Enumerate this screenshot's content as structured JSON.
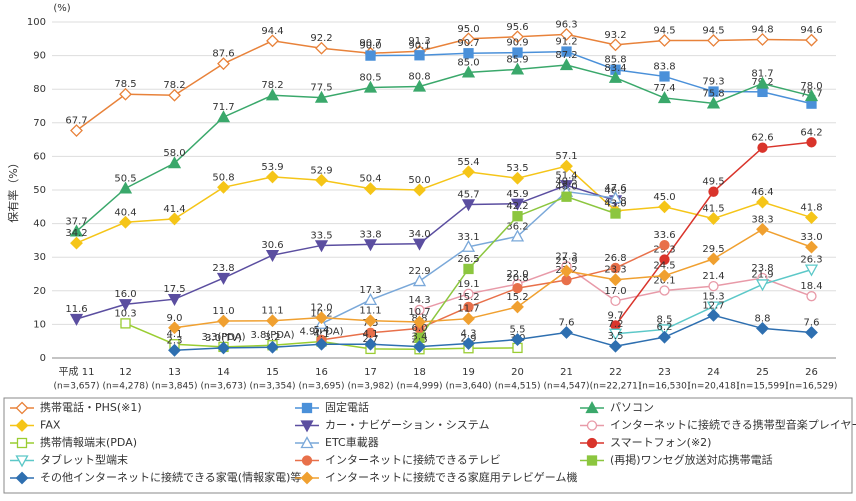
{
  "chart_data": {
    "type": "line",
    "y_unit": "(%)",
    "y_title": "保有率（%）",
    "categories": [
      "平成 11",
      "12",
      "13",
      "14",
      "15",
      "16",
      "17",
      "18",
      "19",
      "20",
      "21",
      "22",
      "23",
      "24",
      "25",
      "26"
    ],
    "sample_sizes": [
      "(n=3,657)",
      "(n=4,278)",
      "(n=3,845)",
      "(n=3,673)",
      "(n=3,354)",
      "(n=3,695)",
      "(n=3,982)",
      "(n=4,999)",
      "(n=3,640)",
      "(n=4,515)",
      "(n=4,547)",
      "(n=22,271)",
      "(n=16,530)",
      "(n=20,418)",
      "(n=15,599)",
      "(n=16,529)"
    ],
    "ylim": [
      0,
      100
    ],
    "yticks": [
      0,
      10,
      20,
      30,
      40,
      50,
      60,
      70,
      80,
      90,
      100
    ],
    "grid": true,
    "series": [
      {
        "name": "携帯電話・PHS(※1)",
        "color": "#e8823a",
        "marker": "diamond",
        "filled": false,
        "values": [
          67.7,
          78.5,
          78.2,
          87.6,
          94.4,
          92.2,
          90.7,
          91.3,
          95.0,
          95.6,
          96.3,
          93.2,
          94.5,
          94.5,
          94.8,
          94.6
        ]
      },
      {
        "name": "固定電話",
        "color": "#4a90d9",
        "marker": "square",
        "filled": true,
        "values": [
          null,
          null,
          null,
          null,
          null,
          null,
          90.0,
          90.1,
          90.7,
          90.9,
          91.2,
          85.8,
          83.8,
          79.3,
          79.2,
          75.7
        ]
      },
      {
        "name": "パソコン",
        "color": "#3aa86b",
        "marker": "triangle",
        "filled": true,
        "values": [
          37.7,
          50.5,
          58.0,
          71.7,
          78.2,
          77.5,
          80.5,
          80.8,
          85.0,
          85.9,
          87.2,
          83.4,
          77.4,
          75.8,
          81.7,
          78.0
        ]
      },
      {
        "name": "FAX",
        "color": "#f5c518",
        "marker": "diamond",
        "filled": true,
        "values": [
          34.2,
          40.4,
          41.4,
          50.8,
          53.9,
          52.9,
          50.4,
          50.0,
          55.4,
          53.5,
          57.1,
          43.8,
          45.0,
          41.5,
          46.4,
          41.8
        ]
      },
      {
        "name": "カー・ナビゲーション・システム",
        "color": "#5b4ea0",
        "marker": "triangle-down",
        "filled": true,
        "values": [
          11.6,
          16.0,
          17.5,
          23.8,
          30.6,
          33.5,
          33.8,
          34.0,
          45.7,
          45.9,
          51.4,
          46.9,
          null,
          null,
          null,
          null
        ]
      },
      {
        "name": "インターネットに接続できる携帯型音楽プレイヤー",
        "color": "#e89aa8",
        "marker": "circle",
        "filled": false,
        "values": [
          null,
          null,
          null,
          null,
          null,
          null,
          null,
          14.3,
          19.1,
          22.0,
          27.3,
          17.0,
          20.1,
          21.4,
          23.8,
          18.4
        ]
      },
      {
        "name": "携帯情報端末(PDA)",
        "color": "#9acd32",
        "marker": "square",
        "filled": false,
        "values": [
          null,
          10.3,
          4.1,
          3.3,
          3.8,
          4.9,
          2.7,
          2.6,
          2.9,
          3.0,
          null,
          null,
          null,
          null,
          null,
          null
        ],
        "value_labels": [
          null,
          "10.3",
          "4.1",
          "3.3(PDA)",
          "3.8(PDA)",
          "4.9(PDA)",
          "2.7",
          "2.6",
          "2.9",
          "3.0",
          null,
          null,
          null,
          null,
          null,
          null
        ]
      },
      {
        "name": "ETC車載器",
        "color": "#7aa8d9",
        "marker": "triangle",
        "filled": false,
        "values": [
          null,
          null,
          null,
          null,
          null,
          10.2,
          17.3,
          22.9,
          33.1,
          36.2,
          49.5,
          47.6,
          null,
          null,
          null,
          null
        ]
      },
      {
        "name": "スマートフォン(※2)",
        "color": "#d9342b",
        "marker": "circle",
        "filled": true,
        "values": [
          null,
          null,
          null,
          null,
          null,
          null,
          null,
          null,
          null,
          null,
          null,
          9.7,
          29.3,
          49.5,
          62.6,
          64.2
        ]
      },
      {
        "name": "タブレット型端末",
        "color": "#5cc8c8",
        "marker": "triangle-down",
        "filled": false,
        "values": [
          null,
          null,
          null,
          null,
          null,
          null,
          null,
          null,
          null,
          null,
          null,
          7.2,
          8.5,
          15.3,
          21.9,
          26.3
        ]
      },
      {
        "name": "インターネットに接続できるテレビ",
        "color": "#e8704a",
        "marker": "circle",
        "filled": true,
        "values": [
          null,
          null,
          null,
          null,
          null,
          5.4,
          7.5,
          8.8,
          15.2,
          20.8,
          23.2,
          26.8,
          33.6,
          null,
          null,
          null
        ]
      },
      {
        "name": "(再掲)ワンセグ放送対応携帯電話",
        "color": "#8cc63f",
        "marker": "square",
        "filled": true,
        "values": [
          null,
          null,
          null,
          null,
          null,
          null,
          null,
          6.0,
          26.5,
          42.2,
          48.0,
          43.0,
          null,
          null,
          null,
          null
        ]
      },
      {
        "name": "その他インターネットに接続できる家電(情報家電)等",
        "color": "#2e6fb0",
        "marker": "diamond",
        "filled": true,
        "values": [
          null,
          null,
          2.3,
          3.0,
          3.2,
          4.1,
          4.1,
          3.4,
          4.3,
          5.5,
          7.6,
          3.5,
          6.2,
          12.7,
          8.8,
          7.6
        ],
        "value_labels": [
          null,
          null,
          "2.3",
          "3.0(TV)",
          "3.2",
          "4.1",
          "4.1",
          "3.4",
          "4.3",
          "5.5",
          "7.6",
          "3.5",
          "6.2",
          "12.7",
          "8.8",
          "7.6"
        ]
      },
      {
        "name": "インターネットに接続できる家庭用テレビゲーム機",
        "color": "#f0a030",
        "marker": "diamond",
        "filled": true,
        "values": [
          null,
          null,
          9.0,
          11.0,
          11.1,
          12.0,
          11.1,
          10.7,
          11.7,
          15.2,
          25.9,
          23.3,
          24.5,
          29.5,
          38.3,
          33.0
        ]
      }
    ]
  }
}
